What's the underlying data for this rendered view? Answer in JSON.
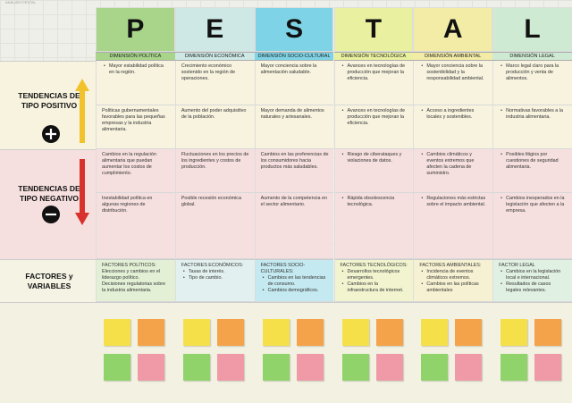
{
  "board": {
    "caption": "ANÁLISIS PESTAL",
    "row_labels": {
      "positive": "TENDENCIAS DE TIPO POSITIVO",
      "negative": "TENDENCIAS DE TIPO NEGATIVO",
      "factors": "FACTORES y VARIABLES"
    },
    "columns": [
      {
        "letter": "P",
        "header": "DIMENSIÓN POLÍTICA",
        "color": "#a8d58a",
        "light": "#e3f0d6",
        "positive": [
          {
            "text": "Mayor estabilidad política en la región.",
            "bullet": true
          },
          {
            "text": "Políticas gubernamentales favorables para las pequeñas empresas y la industria alimentaria.",
            "bullet": false
          }
        ],
        "negative": [
          {
            "text": "Cambios en la regulación alimentaria que puedan aumentar los costos de cumplimiento.",
            "bullet": false
          },
          {
            "text": "Inestabilidad política en algunas regiones de distribución.",
            "bullet": false
          }
        ],
        "factors": {
          "title": "FACTORES POLÍTICOS:",
          "bullet": false,
          "items": [
            "Elecciones y cambios en el liderazgo político.",
            "Decisiones regulatorias sobre la industria alimentaria."
          ]
        }
      },
      {
        "letter": "E",
        "header": "DIMENSIÓN ECONÓMICA",
        "color": "#cde8e5",
        "light": "#e2f1ef",
        "positive": [
          {
            "text": "Crecimiento económico sostenido en la región de operaciones.",
            "bullet": false
          },
          {
            "text": "Aumento del poder adquisitivo de la población.",
            "bullet": false
          }
        ],
        "negative": [
          {
            "text": "Fluctuaciones en los precios de los ingredientes y costos de producción.",
            "bullet": false
          },
          {
            "text": "Posible recesión económica global.",
            "bullet": false
          }
        ],
        "factors": {
          "title": "FACTORES ECONÓMICOS:",
          "bullet": true,
          "items": [
            "Tasas de interés.",
            "Tipo de cambio."
          ]
        }
      },
      {
        "letter": "S",
        "header": "DIMENSIÓN SOCIO-CULTURAL",
        "color": "#7ed4e6",
        "light": "#c4e9f0",
        "positive": [
          {
            "text": "Mayor conciencia sobre la alimentación saludable.",
            "bullet": false
          },
          {
            "text": "Mayor demanda de alimentos naturales y artesanales.",
            "bullet": false
          }
        ],
        "negative": [
          {
            "text": "Cambios en las preferencias de los consumidores hacia productos más saludables.",
            "bullet": false
          },
          {
            "text": "Aumento de la competencia en el sector alimentario.",
            "bullet": false
          }
        ],
        "factors": {
          "title": "FACTORES SOCIO-CULTURALES:",
          "bullet": true,
          "items": [
            "Cambios en las tendencias de consumo.",
            "Cambios demográficos."
          ]
        }
      },
      {
        "letter": "T",
        "header": "DIMENSIÓN TECNOLÓGICA",
        "color": "#e9f09f",
        "light": "#f1f4cf",
        "positive": [
          {
            "text": "Avances en tecnologías de producción que mejoran la eficiencia.",
            "bullet": true
          },
          {
            "text": "Avances en tecnologías de producción que mejoran la eficiencia.",
            "bullet": true
          }
        ],
        "negative": [
          {
            "text": "Riesgo de ciberataques y violaciones de datos.",
            "bullet": true
          },
          {
            "text": "Rápida obsolescencia tecnológica.",
            "bullet": true
          }
        ],
        "factors": {
          "title": "FACTORES TECNOLÓGICOS:",
          "bullet": true,
          "items": [
            "Desarrollos tecnológicos emergentes.",
            "Cambios en la infraestructura de internet."
          ]
        }
      },
      {
        "letter": "A",
        "header": "DIMENSIÓN AMBIENTAL",
        "color": "#f3eca6",
        "light": "#f6f1d2",
        "positive": [
          {
            "text": "Mayor conciencia sobre la sostenibilidad y la responsabilidad ambiental.",
            "bullet": true
          },
          {
            "text": "Acceso a ingredientes locales y sostenibles.",
            "bullet": true
          }
        ],
        "negative": [
          {
            "text": "Cambios climáticos y eventos extremos que afecten la cadena de suministro.",
            "bullet": true
          },
          {
            "text": "Regulaciones más estrictas sobre el impacto ambiental.",
            "bullet": true
          }
        ],
        "factors": {
          "title": "FACTORES AMBIENTALES:",
          "bullet": true,
          "items": [
            "Incidencia de eventos climáticos extremos.",
            "Cambios en las políticas ambientales"
          ]
        }
      },
      {
        "letter": "L",
        "header": "DIMENSIÓN LEGAL",
        "color": "#cfead3",
        "light": "#e0f0e2",
        "positive": [
          {
            "text": "Marco legal claro para la producción y venta de alimentos.",
            "bullet": true
          },
          {
            "text": "Normativas favorables a la industria alimentaria.",
            "bullet": true
          }
        ],
        "negative": [
          {
            "text": "Posibles litigios por cuestiones de seguridad alimentaria.",
            "bullet": true
          },
          {
            "text": "Cambios inesperados en la legislación que afecten a la empresa.",
            "bullet": true
          }
        ],
        "factors": {
          "title": "FACTOR LEGAL",
          "bullet": true,
          "items": [
            "Cambios en la legislación local e internacional.",
            "Resultados de casos legales relevantes."
          ]
        }
      }
    ]
  }
}
